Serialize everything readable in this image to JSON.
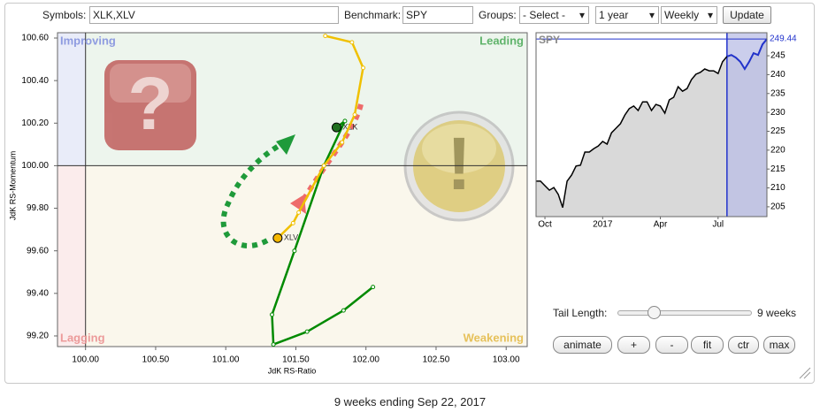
{
  "toolbar": {
    "symbols_label": "Symbols:",
    "symbols": "XLK,XLV",
    "benchmark_label": "Benchmark:",
    "benchmark": "SPY",
    "groups_label": "Groups:",
    "groups": "- Select -",
    "period": "1 year",
    "frequency": "Weekly",
    "update": "Update"
  },
  "chart_data": [
    {
      "type": "rrg",
      "x_label": "JdK RS-Ratio",
      "y_label": "JdK RS-Momentum",
      "quadrants": [
        "Improving",
        "Leading",
        "Lagging",
        "Weakening"
      ],
      "xlim": [
        99.8,
        103.15
      ],
      "ylim": [
        99.15,
        100.625
      ],
      "xticks": [
        {
          "value": 100,
          "label": "100.00"
        },
        {
          "value": 100.5,
          "label": "100.50"
        },
        {
          "value": 101,
          "label": "101.00"
        },
        {
          "value": 101.5,
          "label": "101.50"
        },
        {
          "value": 102,
          "label": "102.00"
        },
        {
          "value": 102.5,
          "label": "102.50"
        },
        {
          "value": 103,
          "label": "103.00"
        }
      ],
      "yticks": [
        {
          "value": 99.2,
          "label": "99.20"
        },
        {
          "value": 99.4,
          "label": "99.40"
        },
        {
          "value": 99.6,
          "label": "99.60"
        },
        {
          "value": 99.8,
          "label": "99.80"
        },
        {
          "value": 100,
          "label": "100.00"
        },
        {
          "value": 100.2,
          "label": "100.20"
        },
        {
          "value": 100.4,
          "label": "100.40"
        },
        {
          "value": 100.6,
          "label": "100.60"
        }
      ],
      "series": [
        {
          "name": "XLK",
          "color": "#008a00",
          "head_color": "#1f6f1f",
          "x": [
            102.05,
            101.84,
            101.58,
            101.34,
            101.33,
            101.49,
            101.7,
            101.85,
            101.79
          ],
          "y": [
            99.43,
            99.32,
            99.22,
            99.16,
            99.3,
            99.6,
            100.0,
            100.21,
            100.18
          ]
        },
        {
          "name": "XLV",
          "color": "#f0c000",
          "head_color": "#f5b800",
          "x": [
            101.71,
            101.9,
            101.98,
            101.92,
            101.83,
            101.7,
            101.52,
            101.48,
            101.37
          ],
          "y": [
            100.61,
            100.58,
            100.46,
            100.24,
            100.11,
            100.0,
            99.78,
            99.73,
            99.66
          ]
        }
      ]
    },
    {
      "type": "line",
      "title": "SPY",
      "color": "#000000",
      "highlight_color": "#2233cc",
      "categories": [
        null,
        null,
        "Oct",
        null,
        null,
        null,
        null,
        null,
        null,
        null,
        null,
        null,
        null,
        null,
        null,
        "2017",
        null,
        null,
        null,
        null,
        null,
        null,
        null,
        null,
        null,
        null,
        null,
        null,
        "Apr",
        null,
        null,
        null,
        null,
        null,
        null,
        null,
        null,
        null,
        null,
        null,
        null,
        "Jul",
        null,
        null,
        null,
        null,
        null,
        null,
        null,
        null,
        null,
        null,
        null
      ],
      "values": [
        211.8,
        211.8,
        210.6,
        209.4,
        210.1,
        208.3,
        204.8,
        211.8,
        213.4,
        215.8,
        216.0,
        219.5,
        219.5,
        220.4,
        221.1,
        222.3,
        221.6,
        224.6,
        225.8,
        227.0,
        229.3,
        231.0,
        231.7,
        230.5,
        232.8,
        232.8,
        230.5,
        232.1,
        231.7,
        229.8,
        233.3,
        234.0,
        236.8,
        235.6,
        236.3,
        238.7,
        240.1,
        240.6,
        241.5,
        241.0,
        241.0,
        240.3,
        243.4,
        244.8,
        245.2,
        244.5,
        243.4,
        241.5,
        243.4,
        245.7,
        245.2,
        248.0,
        249.44
      ],
      "ylim": [
        202.4,
        251.1
      ],
      "yticks": [
        205,
        210,
        215,
        220,
        225,
        230,
        235,
        240,
        245
      ]
    }
  ],
  "controls": {
    "tail_length_label": "Tail Length:",
    "tail_length": 9,
    "tail_length_unit": "weeks",
    "buttons": [
      "animate",
      "+",
      "-",
      "fit",
      "ctr",
      "max"
    ]
  },
  "footer": "9 weeks ending Sep 22, 2017"
}
